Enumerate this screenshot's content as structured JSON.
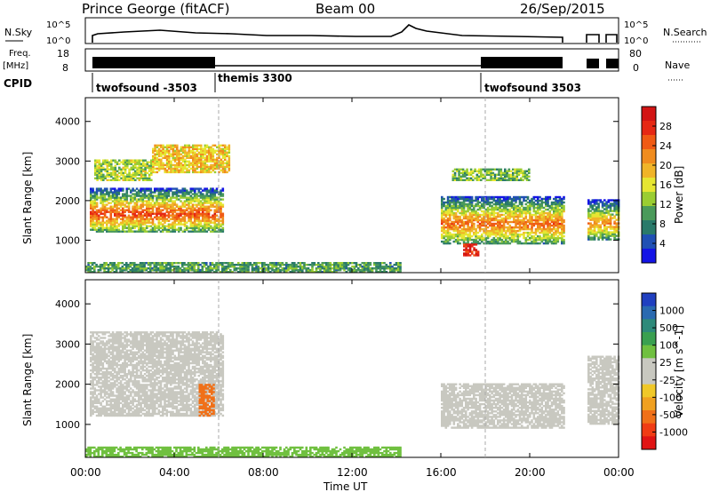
{
  "header": {
    "station": "Prince George (fitACF)",
    "beam": "Beam 00",
    "date": "26/Sep/2015"
  },
  "left_labels": {
    "nsky": "N.Sky",
    "freq": "Freq.",
    "freq_unit": "[MHz]",
    "cpid": "CPID"
  },
  "right_labels": {
    "nsearch": "N.Search",
    "nave": "Nave"
  },
  "noise_panel": {
    "left_ticks": [
      "10^5",
      "10^0"
    ],
    "right_ticks": [
      "10^5",
      "10^0"
    ]
  },
  "freq_panel": {
    "left_ticks": [
      "18",
      "8"
    ],
    "right_ticks": [
      "80",
      "0"
    ]
  },
  "cpid_segments": [
    {
      "label": "twofsound -3503",
      "start_h": 0.85
    },
    {
      "label": "themis 3300",
      "start_h": 6.0
    },
    {
      "label": "twofsound 3503",
      "start_h": 18.0
    }
  ],
  "axes": {
    "x_title": "Time UT",
    "x_ticks": [
      "00:00",
      "04:00",
      "08:00",
      "12:00",
      "16:00",
      "20:00",
      "00:00"
    ],
    "y_title": "Slant Range [km]",
    "y_ticks": [
      "1000",
      "2000",
      "3000",
      "4000"
    ]
  },
  "colorbars": {
    "power": {
      "title": "Power [dB]",
      "ticks": [
        "4",
        "8",
        "12",
        "16",
        "20",
        "24",
        "28"
      ],
      "colors": [
        "#1414e6",
        "#2050b4",
        "#2a7a6a",
        "#4a9a5a",
        "#9acd32",
        "#e6e632",
        "#f0b428",
        "#f08c1e",
        "#f05a14",
        "#e62814",
        "#d21414"
      ]
    },
    "velocity": {
      "title": "Velocity [m s^-1]",
      "ticks": [
        "1000",
        "500",
        "100",
        "25",
        "-25",
        "-100",
        "-500",
        "-1000"
      ],
      "colors": [
        "#2040c0",
        "#2a6ab0",
        "#2e8a7a",
        "#3aa050",
        "#70c040",
        "#c8c8c0",
        "#c8c8c0",
        "#f0c828",
        "#f0a020",
        "#f07018",
        "#f03c14",
        "#e01414"
      ]
    }
  },
  "chart_data": {
    "type": "heatmap",
    "x_range_hours": [
      0,
      24
    ],
    "y_range_km": [
      180,
      4600
    ],
    "power_blobs": [
      {
        "t0": 0.2,
        "t1": 6.2,
        "r0": 1200,
        "r1": 2300,
        "center_r": 1650,
        "value": 26
      },
      {
        "t0": 0.4,
        "t1": 3.0,
        "r0": 2500,
        "r1": 3000,
        "value": 14
      },
      {
        "t0": 3.0,
        "t1": 6.5,
        "r0": 2700,
        "r1": 3400,
        "value": 18
      },
      {
        "t0": 16.0,
        "t1": 21.5,
        "r0": 900,
        "r1": 2100,
        "center_r": 1400,
        "value": 24
      },
      {
        "t0": 16.5,
        "t1": 20.0,
        "r0": 2500,
        "r1": 2800,
        "value": 12
      },
      {
        "t0": 17.0,
        "t1": 17.7,
        "r0": 600,
        "r1": 900,
        "value": 28
      },
      {
        "t0": 22.6,
        "t1": 24.0,
        "r0": 1000,
        "r1": 2000,
        "center_r": 1400,
        "value": 22
      },
      {
        "t0": 0.0,
        "t1": 14.2,
        "r0": 180,
        "r1": 450,
        "value": 10
      }
    ],
    "velocity_blobs": [
      {
        "t0": 0.2,
        "t1": 6.2,
        "r0": 1200,
        "r1": 3300,
        "value": 0
      },
      {
        "t0": 16.0,
        "t1": 21.5,
        "r0": 900,
        "r1": 2000,
        "value": 0
      },
      {
        "t0": 22.6,
        "t1": 24.0,
        "r0": 1000,
        "r1": 2700,
        "value": 0
      },
      {
        "t0": 5.1,
        "t1": 5.8,
        "r0": 1200,
        "r1": 2000,
        "value": -200
      },
      {
        "t0": 0.0,
        "t1": 14.2,
        "r0": 180,
        "r1": 450,
        "value": 60
      }
    ],
    "markers_h": [
      6.0,
      18.0
    ],
    "gaps_h": [
      [
        21.5,
        22.6
      ]
    ]
  }
}
